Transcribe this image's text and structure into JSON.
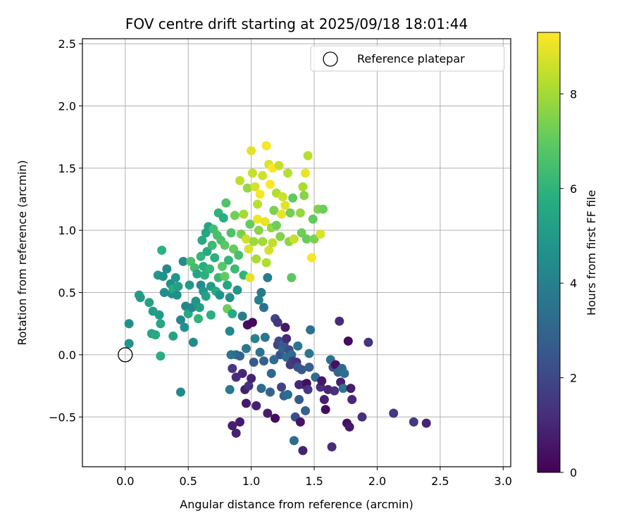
{
  "chart_data": {
    "type": "scatter",
    "title": "FOV centre drift starting at 2025/09/18 18:01:44",
    "xlabel": "Angular distance from reference (arcmin)",
    "ylabel": "Rotation from reference (arcmin)",
    "xlim": [
      -0.34,
      3.06
    ],
    "ylim": [
      -0.9,
      2.54
    ],
    "xticks": [
      "0.0",
      "0.5",
      "1.0",
      "1.5",
      "2.0",
      "2.5",
      "3.0"
    ],
    "xtick_values": [
      0,
      0.5,
      1.0,
      1.5,
      2.0,
      2.5,
      3.0
    ],
    "yticks": [
      "−0.5",
      "0.0",
      "0.5",
      "1.0",
      "1.5",
      "2.0",
      "2.5"
    ],
    "ytick_values": [
      -0.5,
      0,
      0.5,
      1.0,
      1.5,
      2.0,
      2.5
    ],
    "grid": true,
    "colormap": "viridis",
    "colorbar": {
      "label": "Hours from first FF file",
      "range": [
        0,
        9.3
      ],
      "ticks": [
        "0",
        "2",
        "4",
        "6",
        "8"
      ],
      "tick_values": [
        0,
        2,
        4,
        6,
        8
      ]
    },
    "legend": {
      "position": "top-right",
      "entries": [
        "Reference platepar"
      ]
    },
    "reference_point": {
      "x": 0.0,
      "y": 0.0,
      "label": "Reference platepar"
    },
    "points": [
      {
        "x": 0.03,
        "y": 0.25,
        "c": 4.6
      },
      {
        "x": 0.03,
        "y": 0.09,
        "c": 4.8
      },
      {
        "x": 0.11,
        "y": 0.48,
        "c": 5.2
      },
      {
        "x": 0.12,
        "y": 0.46,
        "c": 5.0
      },
      {
        "x": 0.19,
        "y": 0.42,
        "c": 5.3
      },
      {
        "x": 0.21,
        "y": 0.17,
        "c": 5.4
      },
      {
        "x": 0.22,
        "y": 0.35,
        "c": 5.1
      },
      {
        "x": 0.24,
        "y": 0.16,
        "c": 5.6
      },
      {
        "x": 0.26,
        "y": 0.64,
        "c": 4.9
      },
      {
        "x": 0.27,
        "y": 0.32,
        "c": 5.0
      },
      {
        "x": 0.28,
        "y": 0.25,
        "c": 5.5
      },
      {
        "x": 0.28,
        "y": -0.01,
        "c": 5.8
      },
      {
        "x": 0.29,
        "y": 0.84,
        "c": 5.9
      },
      {
        "x": 0.3,
        "y": 0.63,
        "c": 4.7
      },
      {
        "x": 0.31,
        "y": 0.5,
        "c": 4.5
      },
      {
        "x": 0.33,
        "y": 0.69,
        "c": 4.4
      },
      {
        "x": 0.36,
        "y": 0.57,
        "c": 4.6
      },
      {
        "x": 0.37,
        "y": 0.49,
        "c": 4.5
      },
      {
        "x": 0.38,
        "y": 0.15,
        "c": 5.4
      },
      {
        "x": 0.38,
        "y": 0.53,
        "c": 5.7
      },
      {
        "x": 0.4,
        "y": 0.62,
        "c": 4.9
      },
      {
        "x": 0.41,
        "y": 0.48,
        "c": 4.6
      },
      {
        "x": 0.42,
        "y": 0.55,
        "c": 5.2
      },
      {
        "x": 0.44,
        "y": 0.28,
        "c": 4.3
      },
      {
        "x": 0.44,
        "y": -0.3,
        "c": 4.4
      },
      {
        "x": 0.46,
        "y": 0.75,
        "c": 4.5
      },
      {
        "x": 0.47,
        "y": 0.22,
        "c": 4.7
      },
      {
        "x": 0.48,
        "y": 0.39,
        "c": 4.2
      },
      {
        "x": 0.5,
        "y": 0.33,
        "c": 5.6
      },
      {
        "x": 0.51,
        "y": 0.56,
        "c": 5.0
      },
      {
        "x": 0.52,
        "y": 0.75,
        "c": 6.6
      },
      {
        "x": 0.53,
        "y": 0.38,
        "c": 4.3
      },
      {
        "x": 0.54,
        "y": 0.1,
        "c": 4.4
      },
      {
        "x": 0.55,
        "y": 0.7,
        "c": 6.4
      },
      {
        "x": 0.56,
        "y": 0.43,
        "c": 4.8
      },
      {
        "x": 0.57,
        "y": 0.65,
        "c": 5.4
      },
      {
        "x": 0.58,
        "y": 0.29,
        "c": 6.0
      },
      {
        "x": 0.59,
        "y": 0.38,
        "c": 5.2
      },
      {
        "x": 0.6,
        "y": 0.56,
        "c": 4.5
      },
      {
        "x": 0.6,
        "y": 0.79,
        "c": 6.1
      },
      {
        "x": 0.61,
        "y": 0.92,
        "c": 5.6
      },
      {
        "x": 0.62,
        "y": 0.71,
        "c": 5.8
      },
      {
        "x": 0.62,
        "y": 0.51,
        "c": 4.9
      },
      {
        "x": 0.63,
        "y": 0.64,
        "c": 5.9
      },
      {
        "x": 0.64,
        "y": 0.47,
        "c": 5.3
      },
      {
        "x": 0.64,
        "y": 0.98,
        "c": 5.5
      },
      {
        "x": 0.65,
        "y": 0.83,
        "c": 5.7
      },
      {
        "x": 0.66,
        "y": 1.03,
        "c": 5.4
      },
      {
        "x": 0.67,
        "y": 0.69,
        "c": 6.1
      },
      {
        "x": 0.68,
        "y": 0.55,
        "c": 5.0
      },
      {
        "x": 0.68,
        "y": 0.32,
        "c": 5.8
      },
      {
        "x": 0.69,
        "y": 0.88,
        "c": 6.3
      },
      {
        "x": 0.7,
        "y": 1.01,
        "c": 6.4
      },
      {
        "x": 0.71,
        "y": 0.78,
        "c": 5.9
      },
      {
        "x": 0.72,
        "y": 0.51,
        "c": 5.6
      },
      {
        "x": 0.73,
        "y": 0.96,
        "c": 6.5
      },
      {
        "x": 0.74,
        "y": 0.62,
        "c": 6.2
      },
      {
        "x": 0.74,
        "y": 1.14,
        "c": 6.0
      },
      {
        "x": 0.75,
        "y": 0.48,
        "c": 4.7
      },
      {
        "x": 0.76,
        "y": 0.92,
        "c": 6.6
      },
      {
        "x": 0.77,
        "y": 0.71,
        "c": 6.8
      },
      {
        "x": 0.78,
        "y": 1.1,
        "c": 5.8
      },
      {
        "x": 0.79,
        "y": 0.88,
        "c": 6.9
      },
      {
        "x": 0.79,
        "y": 0.63,
        "c": 7.0
      },
      {
        "x": 0.8,
        "y": 1.22,
        "c": 6.7
      },
      {
        "x": 0.81,
        "y": 0.37,
        "c": 7.2
      },
      {
        "x": 0.81,
        "y": 0.56,
        "c": 5.4
      },
      {
        "x": 0.82,
        "y": 0.76,
        "c": 6.1
      },
      {
        "x": 0.83,
        "y": 0.46,
        "c": 4.6
      },
      {
        "x": 0.83,
        "y": 0.19,
        "c": 4.3
      },
      {
        "x": 0.83,
        "y": -0.28,
        "c": 3.8
      },
      {
        "x": 0.84,
        "y": 0.0,
        "c": 3.6
      },
      {
        "x": 0.84,
        "y": 0.98,
        "c": 6.6
      },
      {
        "x": 0.85,
        "y": 0.33,
        "c": 5.7
      },
      {
        "x": 0.85,
        "y": -0.11,
        "c": 1.5
      },
      {
        "x": 0.85,
        "y": -0.57,
        "c": 0.8
      },
      {
        "x": 0.86,
        "y": 0.85,
        "c": 7.1
      },
      {
        "x": 0.87,
        "y": 0.69,
        "c": 6.3
      },
      {
        "x": 0.87,
        "y": 1.12,
        "c": 7.3
      },
      {
        "x": 0.88,
        "y": 0.0,
        "c": 3.4
      },
      {
        "x": 0.88,
        "y": -0.18,
        "c": 1.2
      },
      {
        "x": 0.88,
        "y": -0.63,
        "c": 0.9
      },
      {
        "x": 0.89,
        "y": 0.52,
        "c": 4.8
      },
      {
        "x": 0.9,
        "y": 0.8,
        "c": 6.5
      },
      {
        "x": 0.91,
        "y": 1.4,
        "c": 8.4
      },
      {
        "x": 0.91,
        "y": -0.01,
        "c": 2.9
      },
      {
        "x": 0.91,
        "y": -0.54,
        "c": 0.7
      },
      {
        "x": 0.92,
        "y": 0.97,
        "c": 7.4
      },
      {
        "x": 0.93,
        "y": 0.31,
        "c": 3.9
      },
      {
        "x": 0.93,
        "y": -0.15,
        "c": 1.0
      },
      {
        "x": 0.94,
        "y": 1.13,
        "c": 8.0
      },
      {
        "x": 0.94,
        "y": 0.64,
        "c": 6.0
      },
      {
        "x": 0.95,
        "y": -0.28,
        "c": 0.8
      },
      {
        "x": 0.96,
        "y": 0.93,
        "c": 8.6
      },
      {
        "x": 0.96,
        "y": 0.05,
        "c": 3.7
      },
      {
        "x": 0.96,
        "y": -0.39,
        "c": 0.6
      },
      {
        "x": 0.97,
        "y": 1.34,
        "c": 7.8
      },
      {
        "x": 0.97,
        "y": 0.24,
        "c": 0.4
      },
      {
        "x": 0.98,
        "y": 0.85,
        "c": 8.8
      },
      {
        "x": 0.98,
        "y": -0.25,
        "c": 1.3
      },
      {
        "x": 0.99,
        "y": 1.05,
        "c": 7.1
      },
      {
        "x": 0.99,
        "y": 0.62,
        "c": 8.9
      },
      {
        "x": 1.0,
        "y": 1.64,
        "c": 8.9
      },
      {
        "x": 1.0,
        "y": -0.19,
        "c": 0.9
      },
      {
        "x": 1.01,
        "y": 1.46,
        "c": 8.5
      },
      {
        "x": 1.01,
        "y": 0.26,
        "c": 0.2
      },
      {
        "x": 1.02,
        "y": 0.91,
        "c": 7.9
      },
      {
        "x": 1.02,
        "y": -0.06,
        "c": 2.6
      },
      {
        "x": 1.03,
        "y": 1.35,
        "c": 8.7
      },
      {
        "x": 1.03,
        "y": 0.13,
        "c": 4.0
      },
      {
        "x": 1.04,
        "y": 0.77,
        "c": 8.1
      },
      {
        "x": 1.04,
        "y": -0.41,
        "c": 0.8
      },
      {
        "x": 1.05,
        "y": 1.09,
        "c": 9.1
      },
      {
        "x": 1.05,
        "y": 1.21,
        "c": 8.3
      },
      {
        "x": 1.06,
        "y": 0.44,
        "c": 4.1
      },
      {
        "x": 1.06,
        "y": 1.0,
        "c": 7.6
      },
      {
        "x": 1.07,
        "y": 1.29,
        "c": 9.2
      },
      {
        "x": 1.07,
        "y": 0.02,
        "c": 3.5
      },
      {
        "x": 1.08,
        "y": 0.5,
        "c": 3.8
      },
      {
        "x": 1.08,
        "y": -0.27,
        "c": 3.2
      },
      {
        "x": 1.09,
        "y": 0.91,
        "c": 8.0
      },
      {
        "x": 1.09,
        "y": 1.44,
        "c": 8.6
      },
      {
        "x": 1.1,
        "y": 0.38,
        "c": 3.4
      },
      {
        "x": 1.1,
        "y": -0.05,
        "c": 2.8
      },
      {
        "x": 1.11,
        "y": 1.07,
        "c": 9.0
      },
      {
        "x": 1.11,
        "y": 0.14,
        "c": 3.6
      },
      {
        "x": 1.12,
        "y": 1.68,
        "c": 9.2
      },
      {
        "x": 1.12,
        "y": 0.74,
        "c": 8.2
      },
      {
        "x": 1.13,
        "y": 0.62,
        "c": 3.9
      },
      {
        "x": 1.13,
        "y": -0.47,
        "c": 0.7
      },
      {
        "x": 1.14,
        "y": 1.53,
        "c": 8.8
      },
      {
        "x": 1.14,
        "y": 0.84,
        "c": 8.7
      },
      {
        "x": 1.15,
        "y": 1.37,
        "c": 9.3
      },
      {
        "x": 1.15,
        "y": -0.3,
        "c": 2.9
      },
      {
        "x": 1.16,
        "y": 1.02,
        "c": 7.8
      },
      {
        "x": 1.16,
        "y": -0.15,
        "c": 3.1
      },
      {
        "x": 1.17,
        "y": 1.5,
        "c": 9.3
      },
      {
        "x": 1.17,
        "y": 0.9,
        "c": 8.4
      },
      {
        "x": 1.18,
        "y": 1.16,
        "c": 7.4
      },
      {
        "x": 1.18,
        "y": -0.04,
        "c": 3.3
      },
      {
        "x": 1.19,
        "y": 0.29,
        "c": 2.0
      },
      {
        "x": 1.19,
        "y": -0.51,
        "c": 0.3
      },
      {
        "x": 1.2,
        "y": 1.04,
        "c": 7.2
      },
      {
        "x": 1.2,
        "y": 1.3,
        "c": 8.2
      },
      {
        "x": 1.21,
        "y": 0.26,
        "c": 1.4
      },
      {
        "x": 1.21,
        "y": 0.08,
        "c": 1.8
      },
      {
        "x": 1.22,
        "y": 0.11,
        "c": 2.1
      },
      {
        "x": 1.22,
        "y": 1.52,
        "c": 8.5
      },
      {
        "x": 1.23,
        "y": 0.0,
        "c": 2.4
      },
      {
        "x": 1.23,
        "y": 0.95,
        "c": 7.5
      },
      {
        "x": 1.24,
        "y": 1.13,
        "c": 9.0
      },
      {
        "x": 1.24,
        "y": -0.26,
        "c": 1.9
      },
      {
        "x": 1.25,
        "y": 1.27,
        "c": 8.6
      },
      {
        "x": 1.25,
        "y": 0.05,
        "c": 3.0
      },
      {
        "x": 1.26,
        "y": -0.33,
        "c": 3.0
      },
      {
        "x": 1.26,
        "y": 0.09,
        "c": 2.7
      },
      {
        "x": 1.27,
        "y": 1.2,
        "c": 8.9
      },
      {
        "x": 1.27,
        "y": 0.22,
        "c": 0.6
      },
      {
        "x": 1.28,
        "y": 0.13,
        "c": 1.1
      },
      {
        "x": 1.28,
        "y": -0.02,
        "c": 3.4
      },
      {
        "x": 1.29,
        "y": 1.46,
        "c": 8.3
      },
      {
        "x": 1.29,
        "y": -0.32,
        "c": 3.3
      },
      {
        "x": 1.3,
        "y": 0.91,
        "c": 7.7
      },
      {
        "x": 1.3,
        "y": 0.04,
        "c": 2.2
      },
      {
        "x": 1.31,
        "y": 1.14,
        "c": 7.3
      },
      {
        "x": 1.31,
        "y": -0.08,
        "c": 1.6
      },
      {
        "x": 1.32,
        "y": 0.0,
        "c": 3.3
      },
      {
        "x": 1.32,
        "y": 0.62,
        "c": 6.9
      },
      {
        "x": 1.33,
        "y": 1.26,
        "c": 7.0
      },
      {
        "x": 1.33,
        "y": -0.05,
        "c": 1.7
      },
      {
        "x": 1.34,
        "y": 0.93,
        "c": 8.5
      },
      {
        "x": 1.34,
        "y": -0.69,
        "c": 3.3
      },
      {
        "x": 1.35,
        "y": -0.5,
        "c": 2.2
      },
      {
        "x": 1.36,
        "y": -0.06,
        "c": 1.3
      },
      {
        "x": 1.37,
        "y": -0.1,
        "c": 2.4
      },
      {
        "x": 1.37,
        "y": 0.07,
        "c": 3.6
      },
      {
        "x": 1.38,
        "y": -0.24,
        "c": 1.0
      },
      {
        "x": 1.38,
        "y": -0.36,
        "c": 2.6
      },
      {
        "x": 1.39,
        "y": 1.14,
        "c": 7.8
      },
      {
        "x": 1.39,
        "y": -0.54,
        "c": 0.5
      },
      {
        "x": 1.4,
        "y": -0.12,
        "c": 2.5
      },
      {
        "x": 1.4,
        "y": 0.98,
        "c": 7.2
      },
      {
        "x": 1.41,
        "y": 1.35,
        "c": 8.1
      },
      {
        "x": 1.41,
        "y": -0.77,
        "c": 0.9
      },
      {
        "x": 1.42,
        "y": 1.28,
        "c": 7.6
      },
      {
        "x": 1.42,
        "y": -0.24,
        "c": 1.1
      },
      {
        "x": 1.43,
        "y": 1.46,
        "c": 9.0
      },
      {
        "x": 1.43,
        "y": -0.45,
        "c": 2.9
      },
      {
        "x": 1.44,
        "y": 0.93,
        "c": 7.1
      },
      {
        "x": 1.44,
        "y": -0.23,
        "c": 0.4
      },
      {
        "x": 1.45,
        "y": 1.6,
        "c": 8.3
      },
      {
        "x": 1.45,
        "y": -0.28,
        "c": 1.5
      },
      {
        "x": 1.46,
        "y": 0.01,
        "c": 3.6
      },
      {
        "x": 1.46,
        "y": -0.1,
        "c": 2.8
      },
      {
        "x": 1.47,
        "y": 0.2,
        "c": 3.4
      },
      {
        "x": 1.48,
        "y": 0.78,
        "c": 9.2
      },
      {
        "x": 1.49,
        "y": 1.09,
        "c": 7.0
      },
      {
        "x": 1.5,
        "y": 0.93,
        "c": 7.4
      },
      {
        "x": 1.51,
        "y": -0.18,
        "c": 3.2
      },
      {
        "x": 1.53,
        "y": 1.17,
        "c": 7.5
      },
      {
        "x": 1.55,
        "y": -0.26,
        "c": 1.2
      },
      {
        "x": 1.55,
        "y": 0.97,
        "c": 8.8
      },
      {
        "x": 1.56,
        "y": -0.21,
        "c": 0.6
      },
      {
        "x": 1.57,
        "y": 1.17,
        "c": 7.2
      },
      {
        "x": 1.58,
        "y": -0.36,
        "c": 0.8
      },
      {
        "x": 1.59,
        "y": -0.44,
        "c": 0.3
      },
      {
        "x": 1.61,
        "y": -0.28,
        "c": 1.0
      },
      {
        "x": 1.63,
        "y": -0.04,
        "c": 3.4
      },
      {
        "x": 1.64,
        "y": -0.74,
        "c": 1.2
      },
      {
        "x": 1.65,
        "y": -0.1,
        "c": 2.3
      },
      {
        "x": 1.66,
        "y": -0.29,
        "c": 1.3
      },
      {
        "x": 1.67,
        "y": -0.08,
        "c": 0.4
      },
      {
        "x": 1.69,
        "y": -0.14,
        "c": 3.0
      },
      {
        "x": 1.7,
        "y": 0.27,
        "c": 1.1
      },
      {
        "x": 1.71,
        "y": -0.22,
        "c": 0.8
      },
      {
        "x": 1.72,
        "y": -0.11,
        "c": 3.1
      },
      {
        "x": 1.73,
        "y": -0.27,
        "c": 3.6
      },
      {
        "x": 1.74,
        "y": -0.15,
        "c": 3.4
      },
      {
        "x": 1.76,
        "y": -0.55,
        "c": 0.4
      },
      {
        "x": 1.77,
        "y": 0.11,
        "c": 0.3
      },
      {
        "x": 1.78,
        "y": -0.58,
        "c": 0.6
      },
      {
        "x": 1.79,
        "y": -0.27,
        "c": 0.7
      },
      {
        "x": 1.8,
        "y": -0.36,
        "c": 1.0
      },
      {
        "x": 1.88,
        "y": -0.5,
        "c": 1.3
      },
      {
        "x": 1.93,
        "y": 0.1,
        "c": 1.4
      },
      {
        "x": 2.13,
        "y": -0.47,
        "c": 1.5
      },
      {
        "x": 2.29,
        "y": -0.54,
        "c": 1.6
      },
      {
        "x": 2.39,
        "y": -0.55,
        "c": 0.9
      }
    ]
  }
}
